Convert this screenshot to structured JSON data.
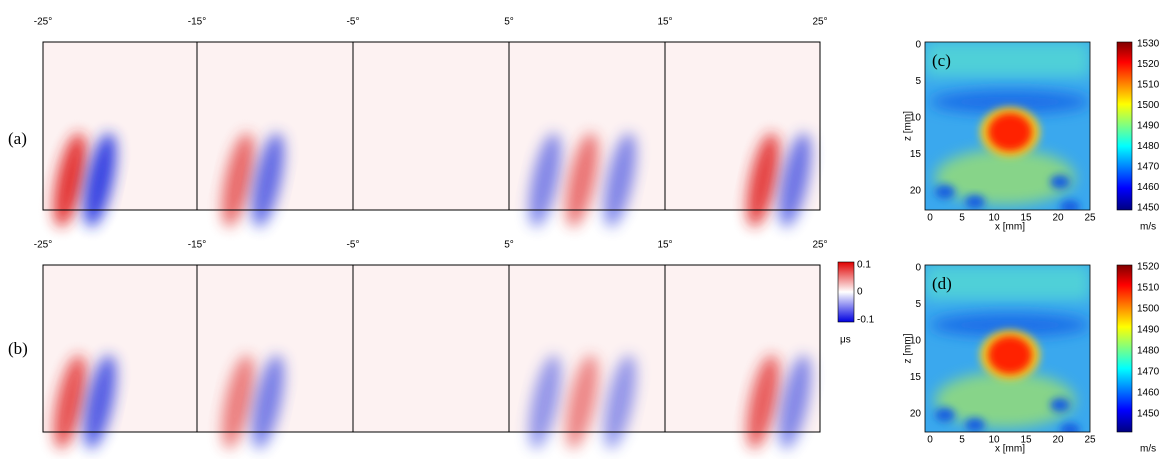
{
  "row_labels": [
    "(a)",
    "(b)"
  ],
  "angle_labels": [
    "-25°",
    "-15°",
    "-5°",
    "5°",
    "15°",
    "25°"
  ],
  "diff_colorbar": {
    "ticks": [
      "0.1",
      "0",
      "-0.1"
    ],
    "unit": "μs"
  },
  "maps": [
    {
      "label": "(c)",
      "x_label": "x [mm]",
      "z_label": "z [mm]",
      "x_ticks": [
        0,
        5,
        10,
        15,
        20,
        25
      ],
      "z_ticks": [
        0,
        5,
        10,
        15,
        20
      ],
      "colorbar_ticks": [
        1530,
        1520,
        1510,
        1500,
        1490,
        1480,
        1470,
        1460,
        1450
      ],
      "unit": "m/s"
    },
    {
      "label": "(d)",
      "x_label": "x [mm]",
      "z_label": "z [mm]",
      "x_ticks": [
        0,
        5,
        10,
        15,
        20,
        25
      ],
      "z_ticks": [
        0,
        5,
        10,
        15,
        20
      ],
      "colorbar_ticks": [
        1520,
        1510,
        1500,
        1490,
        1480,
        1470,
        1460,
        1450
      ],
      "unit": "m/s"
    }
  ]
}
